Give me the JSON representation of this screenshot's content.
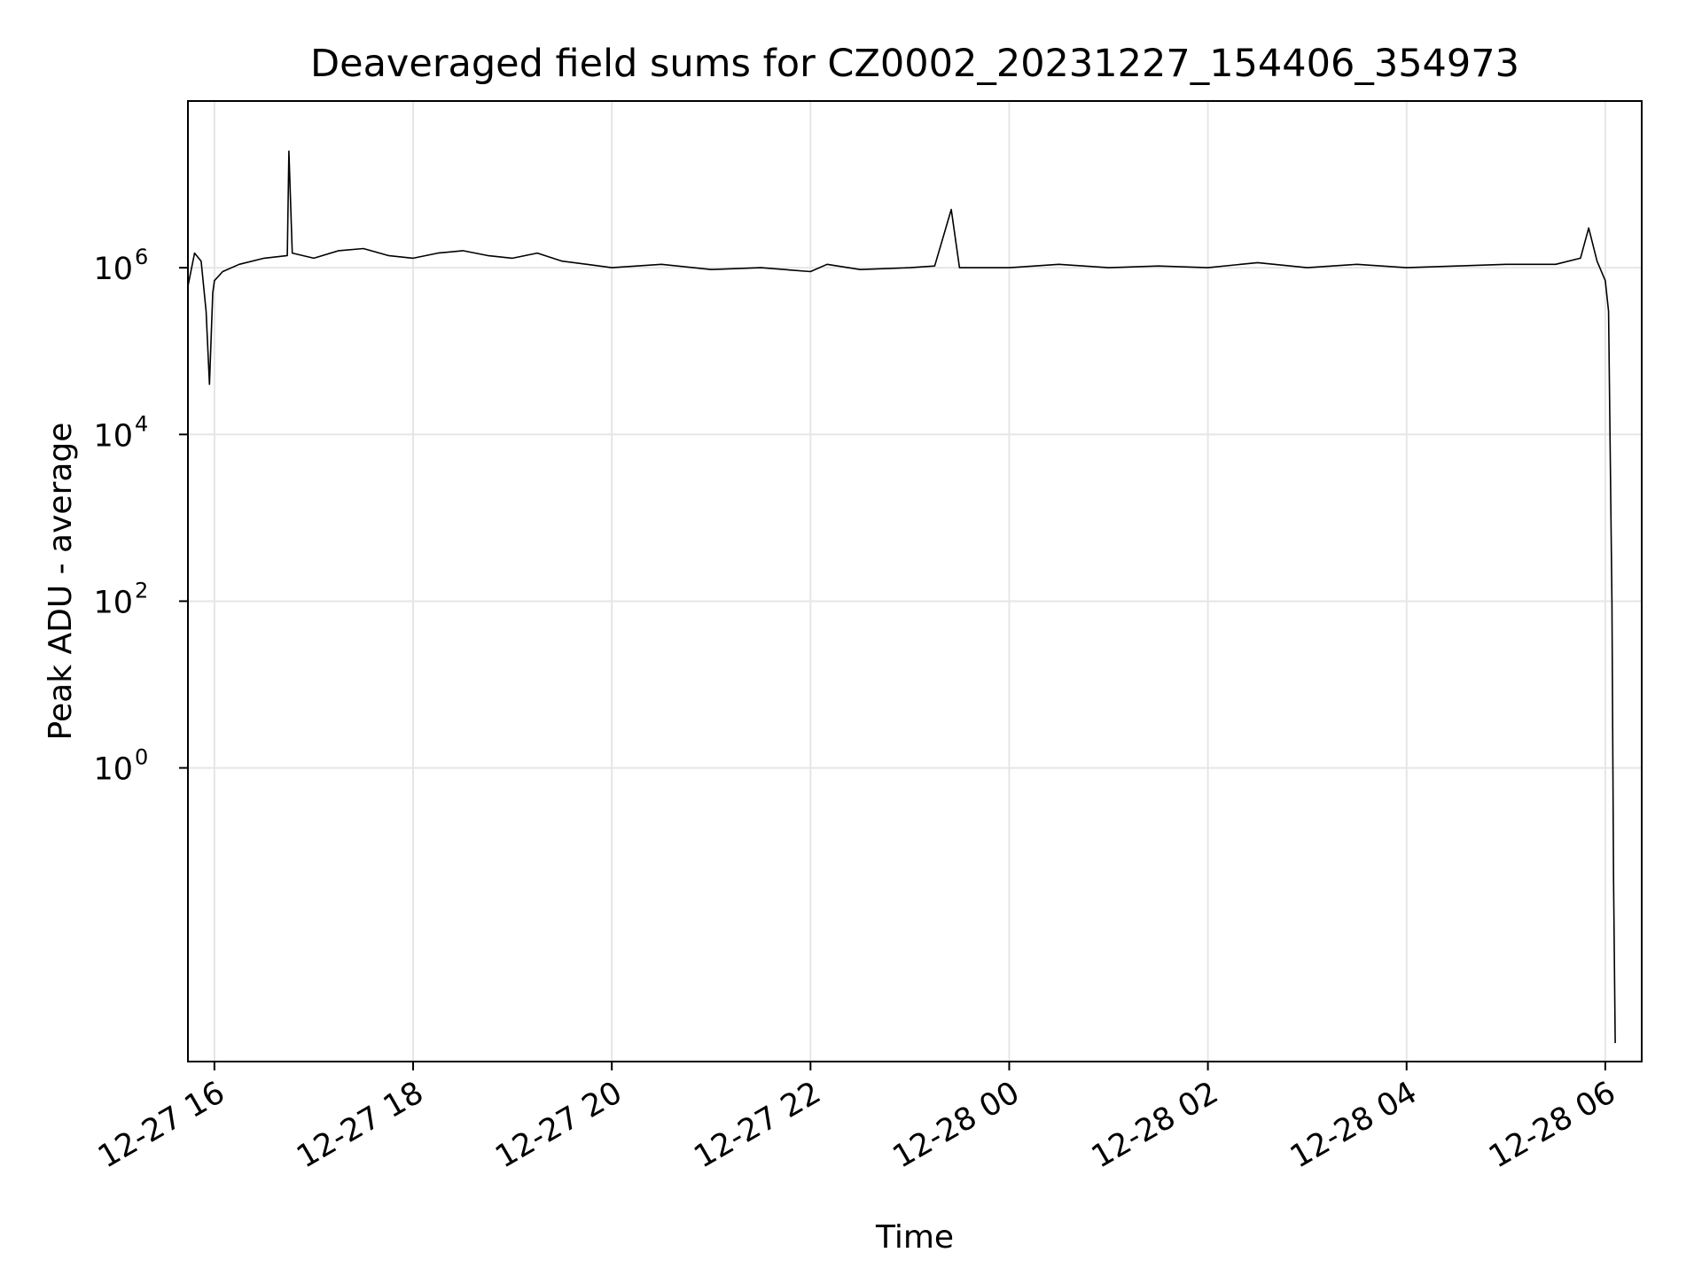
{
  "chart_data": {
    "type": "line",
    "title": "Deaveraged field sums for CZ0002_20231227_154406_354973",
    "xlabel": "Time",
    "ylabel": "Peak ADU - average",
    "x_is_datetime": true,
    "xlim": [
      "2023-12-27T15:44:00",
      "2023-12-28T06:22:00"
    ],
    "ylim": [
      0.0003,
      100000000
    ],
    "yscale": "log",
    "grid": true,
    "line_color": "#000000",
    "x_ticks": [
      {
        "value": "2023-12-27T16:00:00",
        "label": "12-27 16"
      },
      {
        "value": "2023-12-27T18:00:00",
        "label": "12-27 18"
      },
      {
        "value": "2023-12-27T20:00:00",
        "label": "12-27 20"
      },
      {
        "value": "2023-12-27T22:00:00",
        "label": "12-27 22"
      },
      {
        "value": "2023-12-28T00:00:00",
        "label": "12-28 00"
      },
      {
        "value": "2023-12-28T02:00:00",
        "label": "12-28 02"
      },
      {
        "value": "2023-12-28T04:00:00",
        "label": "12-28 04"
      },
      {
        "value": "2023-12-28T06:00:00",
        "label": "12-28 06"
      }
    ],
    "y_ticks": [
      {
        "value": 1,
        "base": "10",
        "exp": "0"
      },
      {
        "value": 100,
        "base": "10",
        "exp": "2"
      },
      {
        "value": 10000,
        "base": "10",
        "exp": "4"
      },
      {
        "value": 1000000,
        "base": "10",
        "exp": "6"
      }
    ],
    "series": [
      {
        "x": [
          "2023-12-27T15:44:00",
          "2023-12-27T15:48:00",
          "2023-12-27T15:52:00",
          "2023-12-27T15:55:00",
          "2023-12-27T15:57:00",
          "2023-12-27T15:59:00",
          "2023-12-27T16:00:00",
          "2023-12-27T16:05:00",
          "2023-12-27T16:15:00",
          "2023-12-27T16:30:00",
          "2023-12-27T16:44:00",
          "2023-12-27T16:45:00",
          "2023-12-27T16:47:00",
          "2023-12-27T17:00:00",
          "2023-12-27T17:15:00",
          "2023-12-27T17:30:00",
          "2023-12-27T17:45:00",
          "2023-12-27T18:00:00",
          "2023-12-27T18:15:00",
          "2023-12-27T18:30:00",
          "2023-12-27T18:45:00",
          "2023-12-27T19:00:00",
          "2023-12-27T19:15:00",
          "2023-12-27T19:30:00",
          "2023-12-27T19:45:00",
          "2023-12-27T20:00:00",
          "2023-12-27T20:30:00",
          "2023-12-27T21:00:00",
          "2023-12-27T21:30:00",
          "2023-12-27T22:00:00",
          "2023-12-27T22:10:00",
          "2023-12-27T22:30:00",
          "2023-12-27T23:00:00",
          "2023-12-27T23:15:00",
          "2023-12-27T23:25:00",
          "2023-12-27T23:30:00",
          "2023-12-28T00:00:00",
          "2023-12-28T00:30:00",
          "2023-12-28T01:00:00",
          "2023-12-28T01:30:00",
          "2023-12-28T02:00:00",
          "2023-12-28T02:30:00",
          "2023-12-28T03:00:00",
          "2023-12-28T03:30:00",
          "2023-12-28T04:00:00",
          "2023-12-28T04:30:00",
          "2023-12-28T05:00:00",
          "2023-12-28T05:30:00",
          "2023-12-28T05:45:00",
          "2023-12-28T05:50:00",
          "2023-12-28T05:55:00",
          "2023-12-28T06:00:00",
          "2023-12-28T06:02:00",
          "2023-12-28T06:04:00",
          "2023-12-28T06:05:00",
          "2023-12-28T06:06:00"
        ],
        "y": [
          600000,
          1500000,
          1200000,
          300000,
          40000,
          500000,
          700000,
          900000,
          1100000,
          1300000,
          1400000,
          25000000,
          1500000,
          1300000,
          1600000,
          1700000,
          1400000,
          1300000,
          1500000,
          1600000,
          1400000,
          1300000,
          1500000,
          1200000,
          1100000,
          1000000,
          1100000,
          950000,
          1000000,
          900000,
          1100000,
          950000,
          1000000,
          1050000,
          5000000,
          1000000,
          1000000,
          1100000,
          1000000,
          1050000,
          1000000,
          1150000,
          1000000,
          1100000,
          1000000,
          1050000,
          1100000,
          1100000,
          1300000,
          3000000,
          1200000,
          700000,
          300000,
          100,
          0.05,
          0.0005
        ]
      }
    ]
  }
}
